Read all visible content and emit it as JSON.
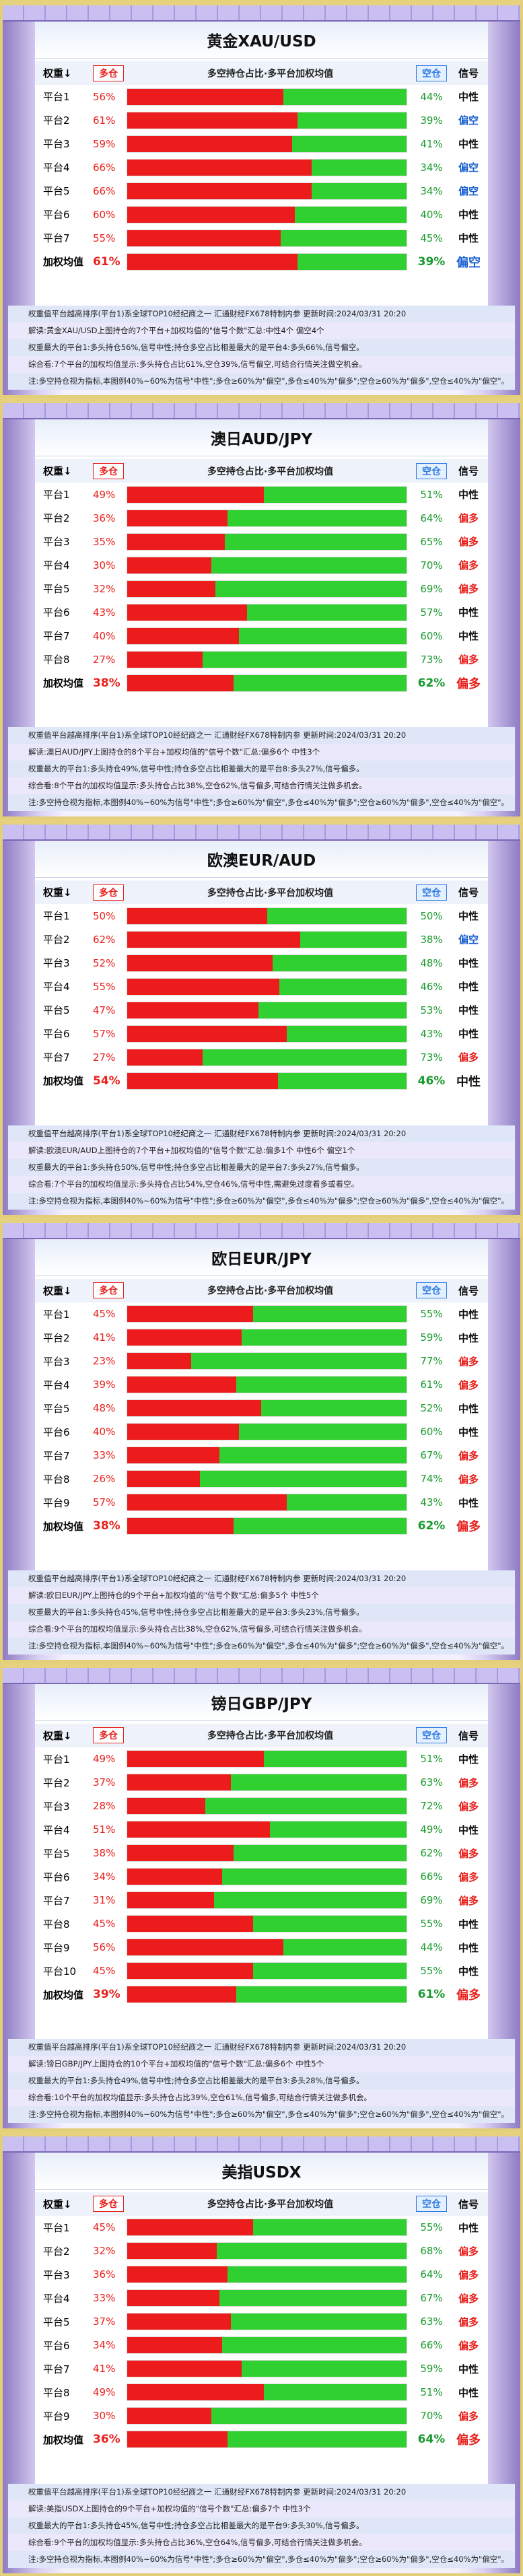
{
  "column_headers": {
    "rank": "权重↓",
    "long": "多仓",
    "center": "多空持仓占比·多平台加权均值",
    "short": "空仓",
    "signal": "信号"
  },
  "source_line": "权重值平台越高排序(平台1)系全球TOP10经纪商之一    汇通财经FX678特制内参    更新时间:2024/03/31 20:20",
  "note_line": "注:多空持仓视为指标,本图例40%~60%为信号\"中性\";多仓≥60%为\"偏空\",多仓≤40%为\"偏多\";空仓≥60%为\"偏多\",空仓≤40%为\"偏空\"。",
  "panels": [
    {
      "title": "黄金XAU/USD",
      "rows": [
        {
          "platform": "平台1",
          "long": 56,
          "long_label": "56%",
          "short": 44,
          "short_label": "44%",
          "signal": "中性"
        },
        {
          "platform": "平台2",
          "long": 61,
          "long_label": "61%",
          "short": 39,
          "short_label": "39%",
          "signal": "偏空"
        },
        {
          "platform": "平台3",
          "long": 59,
          "long_label": "59%",
          "short": 41,
          "short_label": "41%",
          "signal": "中性"
        },
        {
          "platform": "平台4",
          "long": 66,
          "long_label": "66%",
          "short": 34,
          "short_label": "34%",
          "signal": "偏空"
        },
        {
          "platform": "平台5",
          "long": 66,
          "long_label": "66%",
          "short": 34,
          "short_label": "34%",
          "signal": "偏空"
        },
        {
          "platform": "平台6",
          "long": 60,
          "long_label": "60%",
          "short": 40,
          "short_label": "40%",
          "signal": "中性"
        },
        {
          "platform": "平台7",
          "long": 55,
          "long_label": "55%",
          "short": 45,
          "short_label": "45%",
          "signal": "中性"
        }
      ],
      "weighted": {
        "platform": "加权均值",
        "long": 61,
        "long_label": "61%",
        "short": 39,
        "short_label": "39%",
        "signal": "偏空"
      },
      "notes": [
        "解读:黄金XAU/USD上图持仓的7个平台+加权均值的\"信号个数\"汇总:中性4个 偏空4个",
        "权重最大的平台1:多头持仓56%,信号中性;持仓多空占比相差最大的是平台4:多头66%,信号偏空。",
        "综合看:7个平台的加权均值显示:多头持仓占比61%,空仓39%,信号偏空,可结合行情关注做空机会。"
      ]
    },
    {
      "title": "澳日AUD/JPY",
      "rows": [
        {
          "platform": "平台1",
          "long": 49,
          "long_label": "49%",
          "short": 51,
          "short_label": "51%",
          "signal": "中性"
        },
        {
          "platform": "平台2",
          "long": 36,
          "long_label": "36%",
          "short": 64,
          "short_label": "64%",
          "signal": "偏多"
        },
        {
          "platform": "平台3",
          "long": 35,
          "long_label": "35%",
          "short": 65,
          "short_label": "65%",
          "signal": "偏多"
        },
        {
          "platform": "平台4",
          "long": 30,
          "long_label": "30%",
          "short": 70,
          "short_label": "70%",
          "signal": "偏多"
        },
        {
          "platform": "平台5",
          "long": 32,
          "long_label": "32%",
          "short": 69,
          "short_label": "69%",
          "signal": "偏多"
        },
        {
          "platform": "平台6",
          "long": 43,
          "long_label": "43%",
          "short": 57,
          "short_label": "57%",
          "signal": "中性"
        },
        {
          "platform": "平台7",
          "long": 40,
          "long_label": "40%",
          "short": 60,
          "short_label": "60%",
          "signal": "中性"
        },
        {
          "platform": "平台8",
          "long": 27,
          "long_label": "27%",
          "short": 73,
          "short_label": "73%",
          "signal": "偏多"
        }
      ],
      "weighted": {
        "platform": "加权均值",
        "long": 38,
        "long_label": "38%",
        "short": 62,
        "short_label": "62%",
        "signal": "偏多"
      },
      "notes": [
        "解读:澳日AUD/JPY上图持仓的8个平台+加权均值的\"信号个数\"汇总:偏多6个 中性3个",
        "权重最大的平台1:多头持仓49%,信号中性;持仓多空占比相差最大的是平台8:多头27%,信号偏多。",
        "综合看:8个平台的加权均值显示:多头持仓占比38%,空仓62%,信号偏多,可结合行情关注做多机会。"
      ]
    },
    {
      "title": "欧澳EUR/AUD",
      "rows": [
        {
          "platform": "平台1",
          "long": 50,
          "long_label": "50%",
          "short": 50,
          "short_label": "50%",
          "signal": "中性"
        },
        {
          "platform": "平台2",
          "long": 62,
          "long_label": "62%",
          "short": 38,
          "short_label": "38%",
          "signal": "偏空"
        },
        {
          "platform": "平台3",
          "long": 52,
          "long_label": "52%",
          "short": 48,
          "short_label": "48%",
          "signal": "中性"
        },
        {
          "platform": "平台4",
          "long": 55,
          "long_label": "55%",
          "short": 46,
          "short_label": "46%",
          "signal": "中性"
        },
        {
          "platform": "平台5",
          "long": 47,
          "long_label": "47%",
          "short": 53,
          "short_label": "53%",
          "signal": "中性"
        },
        {
          "platform": "平台6",
          "long": 57,
          "long_label": "57%",
          "short": 43,
          "short_label": "43%",
          "signal": "中性"
        },
        {
          "platform": "平台7",
          "long": 27,
          "long_label": "27%",
          "short": 73,
          "short_label": "73%",
          "signal": "偏多"
        }
      ],
      "weighted": {
        "platform": "加权均值",
        "long": 54,
        "long_label": "54%",
        "short": 46,
        "short_label": "46%",
        "signal": "中性"
      },
      "notes": [
        "解读:欧澳EUR/AUD上图持仓的7个平台+加权均值的\"信号个数\"汇总:偏多1个 中性6个 偏空1个",
        "权重最大的平台1:多头持仓50%,信号中性;持仓多空占比相差最大的是平台7:多头27%,信号偏多。",
        "综合看:7个平台的加权均值显示:多头持仓占比54%,空仓46%,信号中性,需避免过度看多或看空。"
      ]
    },
    {
      "title": "欧日EUR/JPY",
      "rows": [
        {
          "platform": "平台1",
          "long": 45,
          "long_label": "45%",
          "short": 55,
          "short_label": "55%",
          "signal": "中性"
        },
        {
          "platform": "平台2",
          "long": 41,
          "long_label": "41%",
          "short": 59,
          "short_label": "59%",
          "signal": "中性"
        },
        {
          "platform": "平台3",
          "long": 23,
          "long_label": "23%",
          "short": 77,
          "short_label": "77%",
          "signal": "偏多"
        },
        {
          "platform": "平台4",
          "long": 39,
          "long_label": "39%",
          "short": 61,
          "short_label": "61%",
          "signal": "偏多"
        },
        {
          "platform": "平台5",
          "long": 48,
          "long_label": "48%",
          "short": 52,
          "short_label": "52%",
          "signal": "中性"
        },
        {
          "platform": "平台6",
          "long": 40,
          "long_label": "40%",
          "short": 60,
          "short_label": "60%",
          "signal": "中性"
        },
        {
          "platform": "平台7",
          "long": 33,
          "long_label": "33%",
          "short": 67,
          "short_label": "67%",
          "signal": "偏多"
        },
        {
          "platform": "平台8",
          "long": 26,
          "long_label": "26%",
          "short": 74,
          "short_label": "74%",
          "signal": "偏多"
        },
        {
          "platform": "平台9",
          "long": 57,
          "long_label": "57%",
          "short": 43,
          "short_label": "43%",
          "signal": "中性"
        }
      ],
      "weighted": {
        "platform": "加权均值",
        "long": 38,
        "long_label": "38%",
        "short": 62,
        "short_label": "62%",
        "signal": "偏多"
      },
      "notes": [
        "解读:欧日EUR/JPY上图持仓的9个平台+加权均值的\"信号个数\"汇总:偏多5个 中性5个",
        "权重最大的平台1:多头持仓45%,信号中性;持仓多空占比相差最大的是平台3:多头23%,信号偏多。",
        "综合看:9个平台的加权均值显示:多头持仓占比38%,空仓62%,信号偏多,可结合行情关注做多机会。"
      ]
    },
    {
      "title": "镑日GBP/JPY",
      "rows": [
        {
          "platform": "平台1",
          "long": 49,
          "long_label": "49%",
          "short": 51,
          "short_label": "51%",
          "signal": "中性"
        },
        {
          "platform": "平台2",
          "long": 37,
          "long_label": "37%",
          "short": 63,
          "short_label": "63%",
          "signal": "偏多"
        },
        {
          "platform": "平台3",
          "long": 28,
          "long_label": "28%",
          "short": 72,
          "short_label": "72%",
          "signal": "偏多"
        },
        {
          "platform": "平台4",
          "long": 51,
          "long_label": "51%",
          "short": 49,
          "short_label": "49%",
          "signal": "中性"
        },
        {
          "platform": "平台5",
          "long": 38,
          "long_label": "38%",
          "short": 62,
          "short_label": "62%",
          "signal": "偏多"
        },
        {
          "platform": "平台6",
          "long": 34,
          "long_label": "34%",
          "short": 66,
          "short_label": "66%",
          "signal": "偏多"
        },
        {
          "platform": "平台7",
          "long": 31,
          "long_label": "31%",
          "short": 69,
          "short_label": "69%",
          "signal": "偏多"
        },
        {
          "platform": "平台8",
          "long": 45,
          "long_label": "45%",
          "short": 55,
          "short_label": "55%",
          "signal": "中性"
        },
        {
          "platform": "平台9",
          "long": 56,
          "long_label": "56%",
          "short": 44,
          "short_label": "44%",
          "signal": "中性"
        },
        {
          "platform": "平台10",
          "long": 45,
          "long_label": "45%",
          "short": 55,
          "short_label": "55%",
          "signal": "中性"
        }
      ],
      "weighted": {
        "platform": "加权均值",
        "long": 39,
        "long_label": "39%",
        "short": 61,
        "short_label": "61%",
        "signal": "偏多"
      },
      "notes": [
        "解读:镑日GBP/JPY上图持仓的10个平台+加权均值的\"信号个数\"汇总:偏多6个 中性5个",
        "权重最大的平台1:多头持仓49%,信号中性;持仓多空占比相差最大的是平台3:多头28%,信号偏多。",
        "综合看:10个平台的加权均值显示:多头持仓占比39%,空仓61%,信号偏多,可结合行情关注做多机会。"
      ]
    },
    {
      "title": "美指USDX",
      "rows": [
        {
          "platform": "平台1",
          "long": 45,
          "long_label": "45%",
          "short": 55,
          "short_label": "55%",
          "signal": "中性"
        },
        {
          "platform": "平台2",
          "long": 32,
          "long_label": "32%",
          "short": 68,
          "short_label": "68%",
          "signal": "偏多"
        },
        {
          "platform": "平台3",
          "long": 36,
          "long_label": "36%",
          "short": 64,
          "short_label": "64%",
          "signal": "偏多"
        },
        {
          "platform": "平台4",
          "long": 33,
          "long_label": "33%",
          "short": 67,
          "short_label": "67%",
          "signal": "偏多"
        },
        {
          "platform": "平台5",
          "long": 37,
          "long_label": "37%",
          "short": 63,
          "short_label": "63%",
          "signal": "偏多"
        },
        {
          "platform": "平台6",
          "long": 34,
          "long_label": "34%",
          "short": 66,
          "short_label": "66%",
          "signal": "偏多"
        },
        {
          "platform": "平台7",
          "long": 41,
          "long_label": "41%",
          "short": 59,
          "short_label": "59%",
          "signal": "中性"
        },
        {
          "platform": "平台8",
          "long": 49,
          "long_label": "49%",
          "short": 51,
          "short_label": "51%",
          "signal": "中性"
        },
        {
          "platform": "平台9",
          "long": 30,
          "long_label": "30%",
          "short": 70,
          "short_label": "70%",
          "signal": "偏多"
        }
      ],
      "weighted": {
        "platform": "加权均值",
        "long": 36,
        "long_label": "36%",
        "short": 64,
        "short_label": "64%",
        "signal": "偏多"
      },
      "notes": [
        "解读:美指USDX上图持仓的9个平台+加权均值的\"信号个数\"汇总:偏多7个 中性3个",
        "权重最大的平台1:多头持仓45%,信号中性;持仓多空占比相差最大的是平台9:多头30%,信号偏多。",
        "综合看:9个平台的加权均值显示:多头持仓占比36%,空仓64%,信号偏多,可结合行情关注做多机会。"
      ]
    }
  ]
}
